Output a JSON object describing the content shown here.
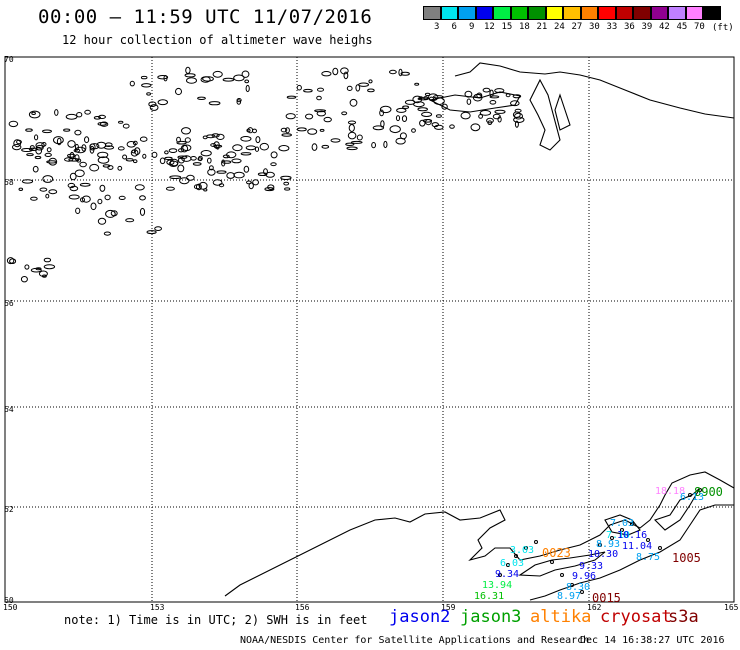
{
  "title": "00:00 – 11:59 UTC 11/07/2016",
  "subtitle": "12 hour collection of altimeter wave heighs",
  "legend": {
    "unit": "(ft)",
    "bins": [
      {
        "label": "3",
        "color": "#808080"
      },
      {
        "label": "6",
        "color": "#00e5ee"
      },
      {
        "label": "9",
        "color": "#00a0f0"
      },
      {
        "label": "12",
        "color": "#0000ee"
      },
      {
        "label": "15",
        "color": "#00ee44"
      },
      {
        "label": "18",
        "color": "#00c000"
      },
      {
        "label": "21",
        "color": "#009000"
      },
      {
        "label": "24",
        "color": "#ffff00"
      },
      {
        "label": "27",
        "color": "#ffbf00"
      },
      {
        "label": "30",
        "color": "#ff8000"
      },
      {
        "label": "33",
        "color": "#ff0000"
      },
      {
        "label": "36",
        "color": "#c00000"
      },
      {
        "label": "39",
        "color": "#800000"
      },
      {
        "label": "42",
        "color": "#900090"
      },
      {
        "label": "45",
        "color": "#c080ff"
      },
      {
        "label": "70",
        "color": "#ff80ff"
      },
      {
        "label": "",
        "color": "#000000"
      }
    ]
  },
  "axes": {
    "lat_labels": [
      "70",
      "68",
      "66",
      "64",
      "62",
      "60"
    ],
    "lon_labels": [
      "150",
      "153",
      "156",
      "159",
      "162",
      "165"
    ]
  },
  "observations": [
    {
      "text": "18.18",
      "color": "#ff80ff"
    },
    {
      "text": "8900",
      "color": "#009000"
    },
    {
      "text": "6.13",
      "color": "#00a0f0"
    },
    {
      "text": "7.03",
      "color": "#00a0f0"
    },
    {
      "text": "7.10",
      "color": "#00e5ee"
    },
    {
      "text": "10.16",
      "color": "#0000ee"
    },
    {
      "text": "8.93",
      "color": "#00a0f0"
    },
    {
      "text": "11.04",
      "color": "#0000ee"
    },
    {
      "text": "10.30",
      "color": "#0000ee"
    },
    {
      "text": "8.75",
      "color": "#00a0f0"
    },
    {
      "text": "1005",
      "color": "#800000"
    },
    {
      "text": "3.03",
      "color": "#00e5ee"
    },
    {
      "text": "0023",
      "color": "#ff8000"
    },
    {
      "text": "6.03",
      "color": "#00e5ee"
    },
    {
      "text": "9.33",
      "color": "#0000ee"
    },
    {
      "text": "9.34",
      "color": "#0000ee"
    },
    {
      "text": "9.96",
      "color": "#0000ee"
    },
    {
      "text": "13.94",
      "color": "#00ee44"
    },
    {
      "text": "8.30",
      "color": "#00a0f0"
    },
    {
      "text": "16.31",
      "color": "#00c000"
    },
    {
      "text": "8.97",
      "color": "#00a0f0"
    },
    {
      "text": "0015",
      "color": "#800000"
    }
  ],
  "note": "note: 1) Time is in UTC; 2) SWH is in feet",
  "satellites": [
    {
      "name": "jason2",
      "color": "#0000ee"
    },
    {
      "name": "jason3",
      "color": "#00a000"
    },
    {
      "name": "altika",
      "color": "#ff8000"
    },
    {
      "name": "cryosat",
      "color": "#c00000"
    },
    {
      "name": "s3a",
      "color": "#800000"
    }
  ],
  "credit": "NOAA/NESDIS Center for Satellite Applications and Research",
  "date": "Dec 14 16:38:27 UTC 2016"
}
